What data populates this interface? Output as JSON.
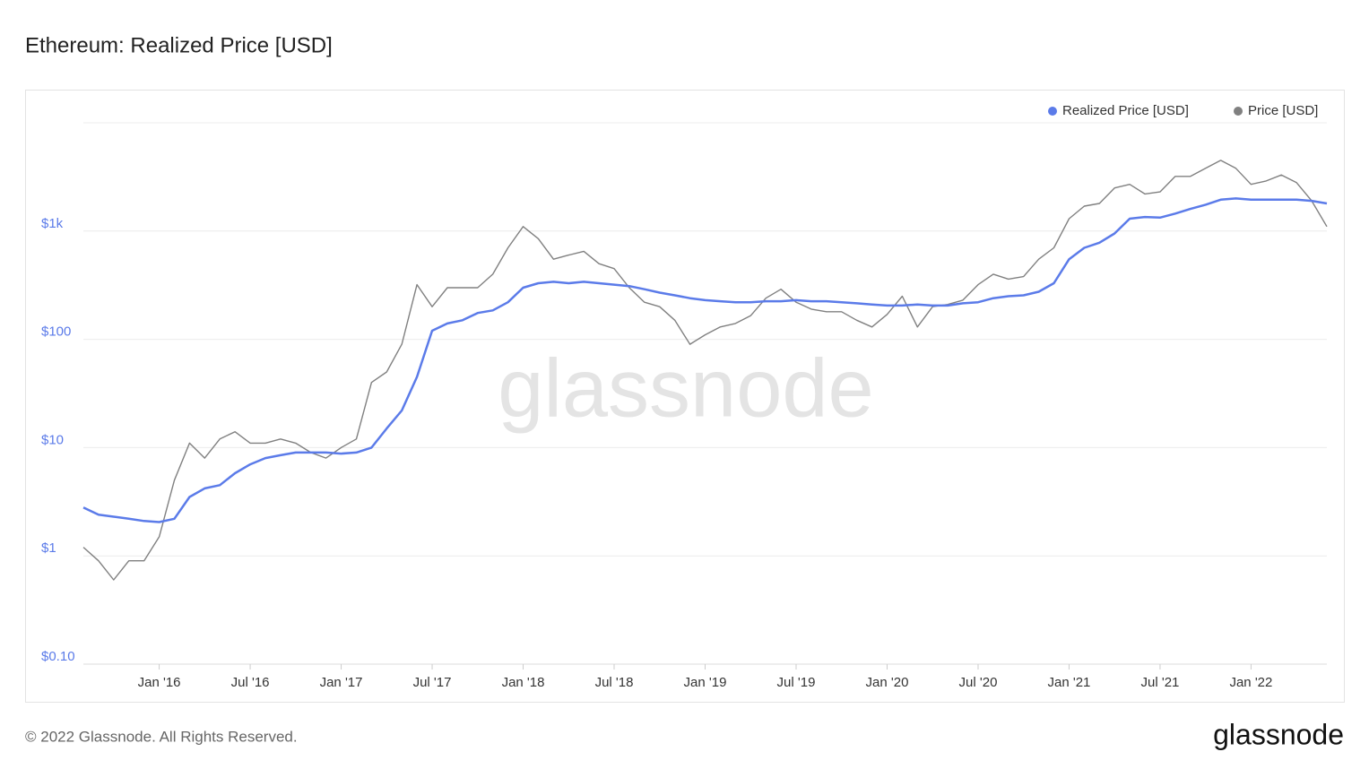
{
  "chart_data": {
    "type": "line",
    "title": "Ethereum: Realized Price [USD]",
    "x": [
      "2015-08",
      "2015-09",
      "2015-10",
      "2015-11",
      "2015-12",
      "2016-01",
      "2016-02",
      "2016-03",
      "2016-04",
      "2016-05",
      "2016-06",
      "2016-07",
      "2016-08",
      "2016-09",
      "2016-10",
      "2016-11",
      "2016-12",
      "2017-01",
      "2017-02",
      "2017-03",
      "2017-04",
      "2017-05",
      "2017-06",
      "2017-07",
      "2017-08",
      "2017-09",
      "2017-10",
      "2017-11",
      "2017-12",
      "2018-01",
      "2018-02",
      "2018-03",
      "2018-04",
      "2018-05",
      "2018-06",
      "2018-07",
      "2018-08",
      "2018-09",
      "2018-10",
      "2018-11",
      "2018-12",
      "2019-01",
      "2019-02",
      "2019-03",
      "2019-04",
      "2019-05",
      "2019-06",
      "2019-07",
      "2019-08",
      "2019-09",
      "2019-10",
      "2019-11",
      "2019-12",
      "2020-01",
      "2020-02",
      "2020-03",
      "2020-04",
      "2020-05",
      "2020-06",
      "2020-07",
      "2020-08",
      "2020-09",
      "2020-10",
      "2020-11",
      "2020-12",
      "2021-01",
      "2021-02",
      "2021-03",
      "2021-04",
      "2021-05",
      "2021-06",
      "2021-07",
      "2021-08",
      "2021-09",
      "2021-10",
      "2021-11",
      "2021-12",
      "2022-01",
      "2022-02",
      "2022-03",
      "2022-04",
      "2022-05",
      "2022-06"
    ],
    "series": [
      {
        "name": "Realized Price [USD]",
        "color": "#5b7be9",
        "values": [
          2.8,
          2.4,
          2.3,
          2.2,
          2.1,
          2.05,
          2.2,
          3.5,
          4.2,
          4.5,
          5.8,
          7,
          8,
          8.5,
          9,
          9,
          9,
          8.8,
          9,
          10,
          15,
          22,
          45,
          120,
          140,
          150,
          175,
          185,
          220,
          300,
          330,
          340,
          330,
          340,
          330,
          320,
          310,
          290,
          270,
          255,
          240,
          230,
          225,
          220,
          220,
          225,
          225,
          230,
          225,
          225,
          220,
          215,
          210,
          205,
          205,
          210,
          205,
          205,
          215,
          220,
          240,
          250,
          255,
          275,
          330,
          550,
          700,
          780,
          950,
          1300,
          1350,
          1330,
          1450,
          1600,
          1750,
          1950,
          2000,
          1950,
          1950,
          1950,
          1950,
          1900,
          1800
        ]
      },
      {
        "name": "Price [USD]",
        "color": "#808080",
        "values": [
          1.2,
          0.9,
          0.6,
          0.9,
          0.9,
          1.5,
          5,
          11,
          8,
          12,
          14,
          11,
          11,
          12,
          11,
          9,
          8,
          10,
          12,
          40,
          50,
          90,
          320,
          200,
          300,
          300,
          300,
          400,
          700,
          1100,
          850,
          550,
          600,
          650,
          500,
          450,
          300,
          220,
          200,
          150,
          90,
          110,
          130,
          140,
          165,
          240,
          290,
          220,
          190,
          180,
          180,
          150,
          130,
          170,
          250,
          130,
          200,
          210,
          230,
          320,
          400,
          360,
          380,
          550,
          700,
          1300,
          1700,
          1800,
          2500,
          2700,
          2200,
          2300,
          3200,
          3200,
          3800,
          4500,
          3800,
          2700,
          2900,
          3300,
          2800,
          1900,
          1100
        ]
      }
    ],
    "xlim": [
      "2015-08",
      "2022-06"
    ],
    "xticks": [
      {
        "value": "2016-01",
        "label": "Jan '16"
      },
      {
        "value": "2016-07",
        "label": "Jul '16"
      },
      {
        "value": "2017-01",
        "label": "Jan '17"
      },
      {
        "value": "2017-07",
        "label": "Jul '17"
      },
      {
        "value": "2018-01",
        "label": "Jan '18"
      },
      {
        "value": "2018-07",
        "label": "Jul '18"
      },
      {
        "value": "2019-01",
        "label": "Jan '19"
      },
      {
        "value": "2019-07",
        "label": "Jul '19"
      },
      {
        "value": "2020-01",
        "label": "Jan '20"
      },
      {
        "value": "2020-07",
        "label": "Jul '20"
      },
      {
        "value": "2021-01",
        "label": "Jan '21"
      },
      {
        "value": "2021-07",
        "label": "Jul '21"
      },
      {
        "value": "2022-01",
        "label": "Jan '22"
      }
    ],
    "ylim": [
      0.1,
      10000
    ],
    "log_y": true,
    "grid": true,
    "legend": "top-right",
    "yticks": [
      {
        "value": 0.1,
        "label": "$0.10"
      },
      {
        "value": 1,
        "label": "$1"
      },
      {
        "value": 10,
        "label": "$10"
      },
      {
        "value": 100,
        "label": "$100"
      },
      {
        "value": 1000,
        "label": "$1k"
      }
    ],
    "watermark": "glassnode",
    "footer": "© 2022 Glassnode. All Rights Reserved.",
    "logo": "glassnode"
  }
}
